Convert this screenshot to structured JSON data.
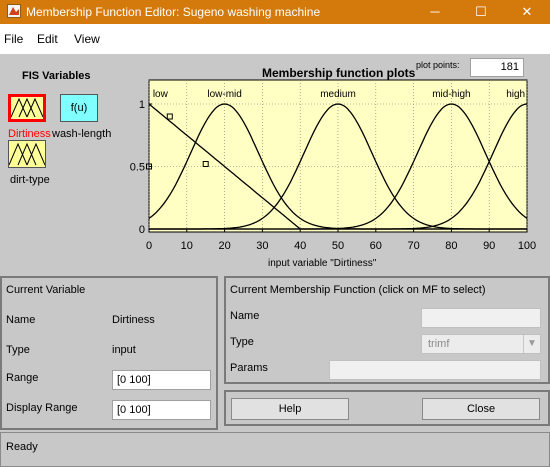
{
  "window": {
    "title": "Membership Function Editor: Sugeno washing machine",
    "minimize_glyph": "─",
    "maximize_glyph": "☐",
    "close_glyph": "✕"
  },
  "menu": {
    "file": "File",
    "edit": "Edit",
    "view": "View"
  },
  "fis": {
    "title": "FIS Variables",
    "input1": "Dirtiness",
    "output": "wash-length",
    "output_box": "f(u)",
    "input2": "dirt-type",
    "selected_color": "#ff0000"
  },
  "plot": {
    "title": "Membership function plots",
    "points_label": "plot points:",
    "points_value": "181",
    "background": "#ffffc4"
  },
  "chart_data": {
    "type": "line",
    "xlabel": "input variable \"Dirtiness\"",
    "ylabel": "",
    "xlim": [
      0,
      100
    ],
    "ylim": [
      0,
      1
    ],
    "xticks": [
      0,
      10,
      20,
      30,
      40,
      50,
      60,
      70,
      80,
      90,
      100
    ],
    "yticks": [
      0,
      0.5,
      1
    ],
    "ytick_labels": [
      "0",
      "0.5",
      "1"
    ],
    "grid": true,
    "series": [
      {
        "name": "low",
        "kind": "trimf",
        "params": [
          -40,
          0,
          40
        ],
        "label_x": 3
      },
      {
        "name": "low-mid",
        "kind": "gauss",
        "center": 20,
        "sigma": 9,
        "label_x": 20
      },
      {
        "name": "medium",
        "kind": "gauss",
        "center": 50,
        "sigma": 9,
        "label_x": 50
      },
      {
        "name": "mid-high",
        "kind": "gauss",
        "center": 80,
        "sigma": 9,
        "label_x": 80
      },
      {
        "name": "high",
        "kind": "gauss",
        "center": 100,
        "sigma": 9,
        "label_x": 97
      }
    ],
    "selected_markers": [
      {
        "x": 0,
        "y": 0.5
      },
      {
        "x": 5.5,
        "y": 0.9
      },
      {
        "x": 15,
        "y": 0.52
      }
    ]
  },
  "current_variable": {
    "title": "Current Variable",
    "name_label": "Name",
    "name_value": "Dirtiness",
    "type_label": "Type",
    "type_value": "input",
    "range_label": "Range",
    "range_value": "[0 100]",
    "display_range_label": "Display Range",
    "display_range_value": "[0 100]"
  },
  "current_mf": {
    "title": "Current Membership Function (click on MF to select)",
    "name_label": "Name",
    "type_label": "Type",
    "type_value": "trimf",
    "params_label": "Params"
  },
  "buttons": {
    "help": "Help",
    "close": "Close"
  },
  "status": {
    "text": "Ready"
  }
}
